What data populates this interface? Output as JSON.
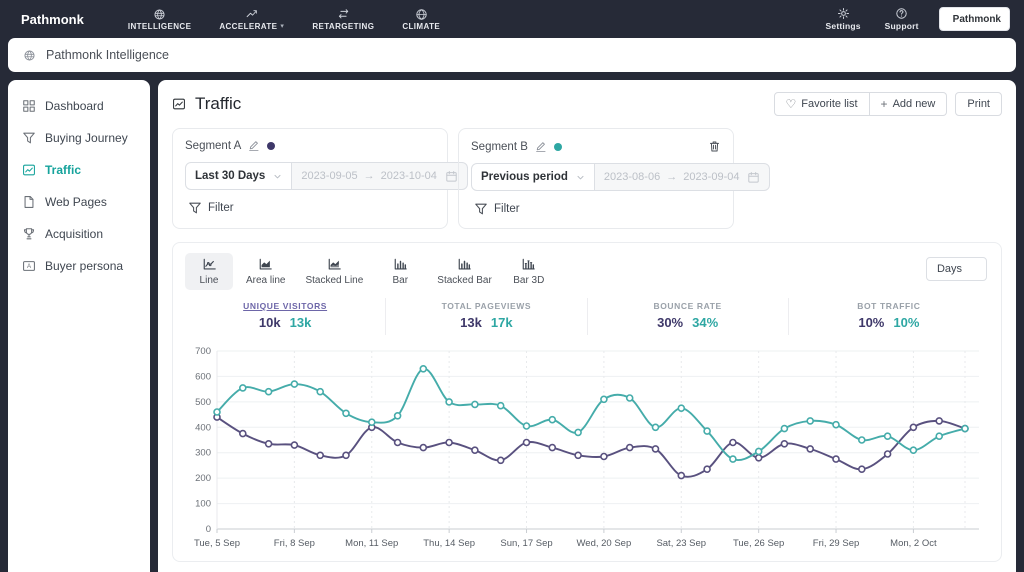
{
  "colors": {
    "segment_a": "#59517f",
    "segment_b": "#45acaa",
    "metric_a_text": "#3e3869",
    "metric_b_text": "#2ea7a3",
    "active_metric_label": "#6d66a8",
    "sidebar_active": "#16a39c",
    "topnav_bg": "#262a37"
  },
  "topnav": {
    "logo_text": "Pathmonk",
    "items": [
      {
        "label": "INTELLIGENCE",
        "icon": "intelligence-icon",
        "has_caret": false
      },
      {
        "label": "ACCELERATE",
        "icon": "accelerate-icon",
        "has_caret": true
      },
      {
        "label": "RETARGETING",
        "icon": "retargeting-icon",
        "has_caret": false
      },
      {
        "label": "CLIMATE",
        "icon": "climate-icon",
        "has_caret": false
      }
    ],
    "right_items": [
      {
        "label": "Settings",
        "icon": "settings-icon"
      },
      {
        "label": "Support",
        "icon": "support-icon"
      }
    ],
    "account_button_label": "Pathmonk"
  },
  "breadcrumb": {
    "label": "Pathmonk Intelligence",
    "icon": "intelligence-icon"
  },
  "sidebar": {
    "items": [
      {
        "label": "Dashboard",
        "icon": "dashboard-icon",
        "active": false
      },
      {
        "label": "Buying Journey",
        "icon": "funnel-icon",
        "active": false
      },
      {
        "label": "Traffic",
        "icon": "traffic-chart-icon",
        "active": true
      },
      {
        "label": "Web Pages",
        "icon": "web-pages-icon",
        "active": false
      },
      {
        "label": "Acquisition",
        "icon": "acquisition-icon",
        "active": false
      },
      {
        "label": "Buyer persona",
        "icon": "buyer-persona-icon",
        "active": false
      }
    ]
  },
  "header": {
    "title": "Traffic",
    "buttons": [
      {
        "label": "Favorite list",
        "icon": "heart-icon"
      },
      {
        "label": "Add new",
        "icon": "plus-icon"
      },
      {
        "label": "Print"
      }
    ]
  },
  "segments": [
    {
      "name": "Segment A",
      "color": "#3e3869",
      "preset": "Last 30 Days",
      "date_start": "2023-09-05",
      "range_separator": "→",
      "date_end": "2023-10-04",
      "filter_label": "Filter",
      "deletable": false
    },
    {
      "name": "Segment B",
      "color": "#2ea7a3",
      "preset": "Previous period",
      "date_start": "2023-08-06",
      "range_separator": "→",
      "date_end": "2023-09-04",
      "filter_label": "Filter",
      "deletable": true
    }
  ],
  "chart_panel": {
    "tabs": [
      {
        "label": "Line",
        "icon": "line-tab-icon",
        "active": true
      },
      {
        "label": "Area line",
        "icon": "area-tab-icon",
        "active": false
      },
      {
        "label": "Stacked Line",
        "icon": "stacked-line-tab-icon",
        "active": false
      },
      {
        "label": "Bar",
        "icon": "bar-tab-icon",
        "active": false
      },
      {
        "label": "Stacked Bar",
        "icon": "stacked-bar-tab-icon",
        "active": false
      },
      {
        "label": "Bar 3D",
        "icon": "bar3d-tab-icon",
        "active": false
      }
    ],
    "granularity": "Days",
    "metrics": [
      {
        "label": "UNIQUE VISITORS",
        "value_a": "10k",
        "value_b": "13k",
        "active": true
      },
      {
        "label": "TOTAL PAGEVIEWS",
        "value_a": "13k",
        "value_b": "17k",
        "active": false
      },
      {
        "label": "BOUNCE RATE",
        "value_a": "30%",
        "value_b": "34%",
        "active": false
      },
      {
        "label": "BOT TRAFFIC",
        "value_a": "10%",
        "value_b": "10%",
        "active": false
      }
    ]
  },
  "chart_data": {
    "type": "line",
    "n_points": 30,
    "x_tick_indices": [
      0,
      3,
      6,
      9,
      12,
      15,
      18,
      21,
      24,
      27
    ],
    "x_tick_labels": [
      "Tue, 5 Sep",
      "Fri, 8 Sep",
      "Mon, 11 Sep",
      "Thu, 14 Sep",
      "Sun, 17 Sep",
      "Wed, 20 Sep",
      "Sat, 23 Sep",
      "Tue, 26 Sep",
      "Fri, 29 Sep",
      "Mon, 2 Oct"
    ],
    "series": [
      {
        "name": "Segment A",
        "color": "#59517f",
        "values": [
          440,
          375,
          335,
          330,
          290,
          290,
          400,
          340,
          320,
          340,
          310,
          270,
          340,
          320,
          290,
          285,
          320,
          315,
          210,
          235,
          340,
          280,
          335,
          315,
          275,
          235,
          295,
          400,
          425,
          395
        ]
      },
      {
        "name": "Segment B",
        "color": "#45acaa",
        "values": [
          460,
          555,
          540,
          570,
          540,
          455,
          420,
          445,
          630,
          500,
          490,
          485,
          405,
          430,
          380,
          510,
          515,
          400,
          475,
          385,
          275,
          305,
          395,
          425,
          410,
          350,
          365,
          310,
          365,
          395
        ]
      }
    ],
    "ylim": [
      0,
      700
    ],
    "yticks": [
      0,
      100,
      200,
      300,
      400,
      500,
      600,
      700
    ],
    "grid": true,
    "legend_position": "none",
    "title": "",
    "xlabel": "",
    "ylabel": ""
  }
}
